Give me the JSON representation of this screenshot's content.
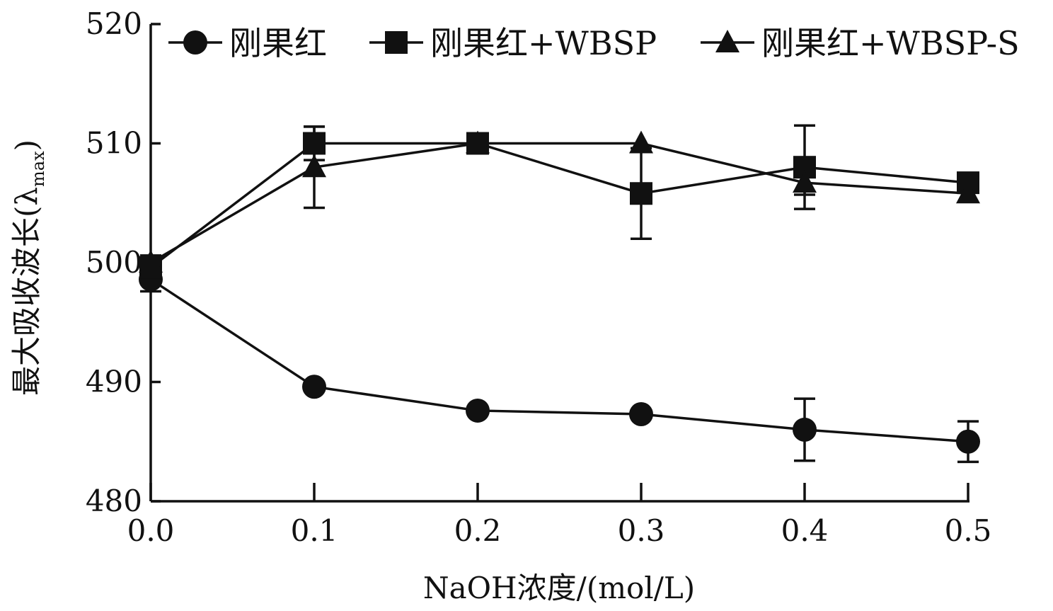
{
  "chart_data": {
    "type": "line",
    "xlabel": "NaOH浓度/(mol/L)",
    "ylabel_main": "最大吸收波长(λ",
    "ylabel_sub": "max",
    "ylabel_close": ")",
    "xlim": [
      0.0,
      0.5
    ],
    "ylim": [
      480,
      520
    ],
    "x_ticks": [
      "0.0",
      "0.1",
      "0.2",
      "0.3",
      "0.4",
      "0.5"
    ],
    "x_tick_values": [
      0.0,
      0.1,
      0.2,
      0.3,
      0.4,
      0.5
    ],
    "y_ticks": [
      "480",
      "490",
      "500",
      "510",
      "520"
    ],
    "y_tick_values": [
      480,
      490,
      500,
      510,
      520
    ],
    "grid": false,
    "legend_position": "top",
    "x": [
      0.0,
      0.1,
      0.2,
      0.3,
      0.4,
      0.5
    ],
    "series": [
      {
        "name": "刚果红",
        "marker": "circle",
        "values": [
          498.6,
          489.6,
          487.6,
          487.3,
          486.0,
          485.0
        ],
        "errors": [
          1.0,
          0.0,
          0.0,
          0.0,
          2.6,
          1.7
        ]
      },
      {
        "name": "刚果红+WBSP",
        "marker": "square",
        "values": [
          499.6,
          510.0,
          510.0,
          505.8,
          508.0,
          506.7
        ],
        "errors": [
          1.0,
          1.4,
          0.0,
          3.8,
          3.5,
          0.0
        ]
      },
      {
        "name": "刚果红+WBSP-S",
        "marker": "triangle",
        "values": [
          500.0,
          508.0,
          510.0,
          510.0,
          506.7,
          505.8
        ],
        "errors": [
          0.0,
          3.4,
          0.0,
          0.0,
          1.0,
          0.0
        ]
      }
    ]
  }
}
